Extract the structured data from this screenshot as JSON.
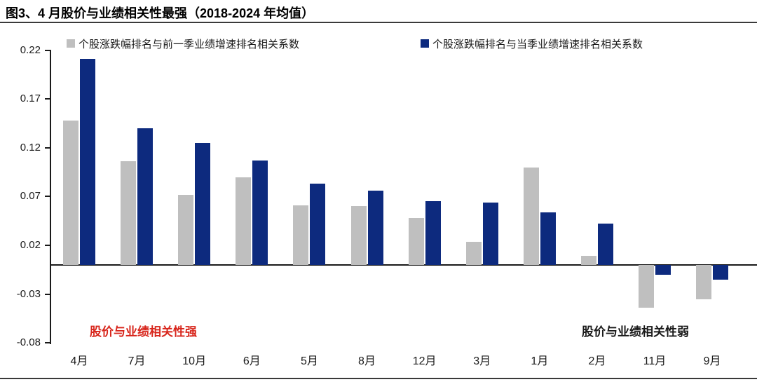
{
  "title": "图3、4 月股价与业绩相关性最强（2018-2024 年均值）",
  "legend": [
    {
      "label": "个股涨跌幅排名与前一季业绩增速排名相关系数",
      "color": "#bfbfbf"
    },
    {
      "label": "个股涨跌幅排名与当季业绩增速排名相关系数",
      "color": "#0d2a7e"
    }
  ],
  "annotations": {
    "strong": {
      "text": "股价与业绩相关性强",
      "color": "#d8261c"
    },
    "weak": {
      "text": "股价与业绩相关性弱",
      "color": "#1a1a1a"
    }
  },
  "chart_data": {
    "type": "bar",
    "title": "图3、4 月股价与业绩相关性最强（2018-2024 年均值）",
    "categories": [
      "4月",
      "7月",
      "10月",
      "6月",
      "5月",
      "8月",
      "12月",
      "3月",
      "1月",
      "2月",
      "11月",
      "9月"
    ],
    "series": [
      {
        "name": "个股涨跌幅排名与前一季业绩增速排名相关系数",
        "color": "#bfbfbf",
        "values": [
          0.148,
          0.106,
          0.072,
          0.09,
          0.061,
          0.06,
          0.048,
          0.024,
          0.1,
          0.009,
          -0.044,
          -0.035
        ]
      },
      {
        "name": "个股涨跌幅排名与当季业绩增速排名相关系数",
        "color": "#0d2a7e",
        "values": [
          0.211,
          0.14,
          0.125,
          0.107,
          0.083,
          0.076,
          0.065,
          0.064,
          0.054,
          0.042,
          -0.01,
          -0.015
        ]
      }
    ],
    "y_ticks": [
      0.22,
      0.17,
      0.12,
      0.07,
      0.02,
      -0.03,
      -0.08
    ],
    "ylim": [
      -0.08,
      0.22
    ],
    "xlabel": "",
    "ylabel": "",
    "grid": false,
    "legend_position": "top"
  }
}
